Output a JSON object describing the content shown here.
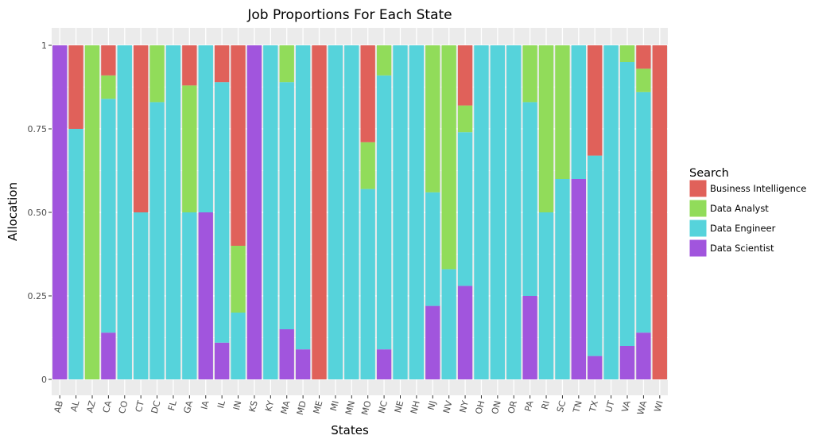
{
  "chart_data": {
    "type": "bar",
    "stacked": true,
    "title": "Job Proportions For Each State",
    "xlabel": "States",
    "ylabel": "Allocation",
    "ylim": [
      0,
      1
    ],
    "yticks": [
      0,
      0.25,
      0.5,
      0.75,
      1
    ],
    "ytick_labels": [
      "0",
      "0.25",
      "0.50",
      "0.75",
      "1"
    ],
    "grid": true,
    "legend_title": "Search",
    "legend_position": "right",
    "categories": [
      "AB",
      "AL",
      "AZ",
      "CA",
      "CO",
      "CT",
      "DC",
      "FL",
      "GA",
      "IA",
      "IL",
      "IN",
      "KS",
      "KY",
      "MA",
      "MD",
      "ME",
      "MI",
      "MN",
      "MO",
      "NC",
      "NE",
      "NH",
      "NJ",
      "NV",
      "NY",
      "OH",
      "ON",
      "OR",
      "PA",
      "RI",
      "SC",
      "TN",
      "TX",
      "UT",
      "VA",
      "WA",
      "WI"
    ],
    "series": [
      {
        "name": "Data Scientist",
        "color": "#a155dd",
        "values": [
          1,
          0,
          0,
          0.14,
          0,
          0,
          0,
          0,
          0,
          0.5,
          0.11,
          0,
          1,
          0,
          0.15,
          0.09,
          0,
          0,
          0,
          0,
          0.09,
          0,
          0,
          0.22,
          0,
          0.28,
          0,
          0,
          0,
          0.25,
          0,
          0,
          0.6,
          0.07,
          0,
          0.1,
          0.14,
          0
        ]
      },
      {
        "name": "Data Engineer",
        "color": "#56d3db",
        "values": [
          0,
          0.75,
          0,
          0.7,
          1,
          0.5,
          0.83,
          1,
          0.5,
          0.5,
          0.78,
          0.2,
          0,
          1,
          0.74,
          0.91,
          0,
          1,
          1,
          0.57,
          0.82,
          1,
          1,
          0.34,
          0.33,
          0.46,
          1,
          1,
          1,
          0.58,
          0.5,
          0.6,
          0.4,
          0.6,
          1,
          0.85,
          0.72,
          0
        ]
      },
      {
        "name": "Data Analyst",
        "color": "#91dc5a",
        "values": [
          0,
          0,
          1,
          0.07,
          0,
          0,
          0.17,
          0,
          0.38,
          0,
          0,
          0.2,
          0,
          0,
          0.11,
          0,
          0,
          0,
          0,
          0.14,
          0.09,
          0,
          0,
          0.44,
          0.67,
          0.08,
          0,
          0,
          0,
          0.17,
          0.5,
          0.4,
          0,
          0,
          0,
          0.05,
          0.07,
          0
        ]
      },
      {
        "name": "Business Intelligence",
        "color": "#e0615a",
        "values": [
          0,
          0.25,
          0,
          0.09,
          0,
          0.5,
          0,
          0,
          0.12,
          0,
          0.11,
          0.6,
          0,
          0,
          0,
          0,
          1,
          0,
          0,
          0.29,
          0,
          0,
          0,
          0,
          0,
          0.18,
          0,
          0,
          0,
          0,
          0,
          0,
          0,
          0.33,
          0,
          0,
          0.07,
          1
        ]
      }
    ],
    "legend_order": [
      "Business Intelligence",
      "Data Analyst",
      "Data Engineer",
      "Data Scientist"
    ]
  }
}
